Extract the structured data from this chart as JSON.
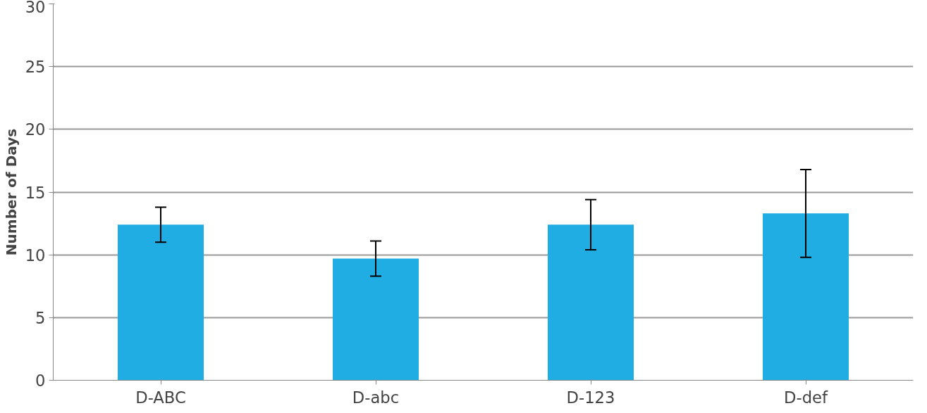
{
  "chart_data": {
    "type": "bar",
    "ylabel": "Number of Days",
    "categories": [
      "D-ABC",
      "D-abc",
      "D-123",
      "D-def"
    ],
    "values": [
      12.4,
      9.7,
      12.4,
      13.3
    ],
    "errors": [
      1.4,
      1.4,
      2.0,
      3.5
    ],
    "color": "#1fade3",
    "ylim": [
      0,
      30
    ],
    "yticks": [
      0,
      5,
      10,
      15,
      20,
      25,
      30
    ],
    "grid": "y"
  }
}
